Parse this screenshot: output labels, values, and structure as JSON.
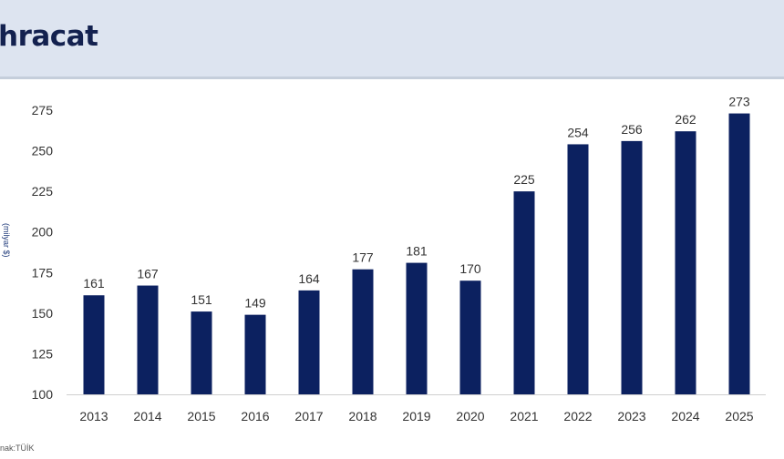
{
  "header": {
    "title": "hracat"
  },
  "source": "nak:TÜİK",
  "colors": {
    "bar": "#0c2160",
    "header_bg": "#dde4f0",
    "text": "#333333"
  },
  "chart_data": {
    "type": "bar",
    "title": "hracat",
    "ylabel": "(milyar $)",
    "xlabel": "",
    "categories": [
      "2013",
      "2014",
      "2015",
      "2016",
      "2017",
      "2018",
      "2019",
      "2020",
      "2021",
      "2022",
      "2023",
      "2024",
      "2025"
    ],
    "values": [
      161,
      167,
      151,
      149,
      164,
      177,
      181,
      170,
      225,
      254,
      256,
      262,
      273
    ],
    "ylim": [
      100,
      275
    ],
    "yticks": [
      100,
      125,
      150,
      175,
      200,
      225,
      250,
      275
    ],
    "grid": false,
    "data_labels": true
  }
}
